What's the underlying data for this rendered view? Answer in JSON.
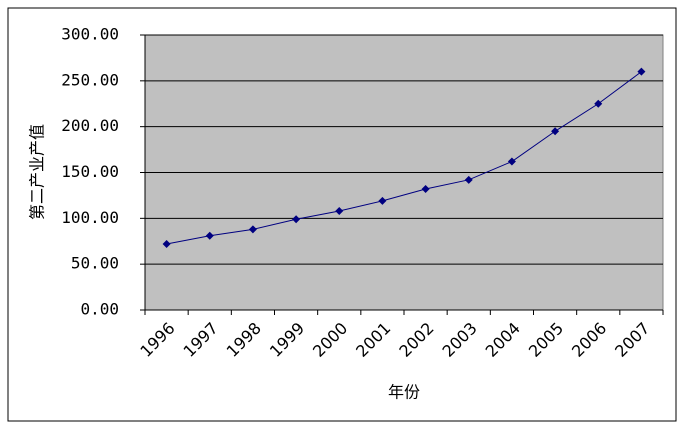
{
  "chart_data": {
    "type": "line",
    "x_label": "年份",
    "y_label": "第二产业产值",
    "categories": [
      "1996",
      "1997",
      "1998",
      "1999",
      "2000",
      "2001",
      "2002",
      "2003",
      "2004",
      "2005",
      "2006",
      "2007"
    ],
    "values": [
      72,
      81,
      88,
      99,
      108,
      119,
      132,
      142,
      162,
      195,
      225,
      260
    ],
    "color": "#000080",
    "ylim": [
      0,
      300
    ],
    "yticks": [
      {
        "value": 0,
        "label": "0.00"
      },
      {
        "value": 50,
        "label": "50.00"
      },
      {
        "value": 100,
        "label": "100.00"
      },
      {
        "value": 150,
        "label": "150.00"
      },
      {
        "value": 200,
        "label": "200.00"
      },
      {
        "value": 250,
        "label": "250.00"
      },
      {
        "value": 300,
        "label": "300.00"
      }
    ],
    "grid": true
  }
}
